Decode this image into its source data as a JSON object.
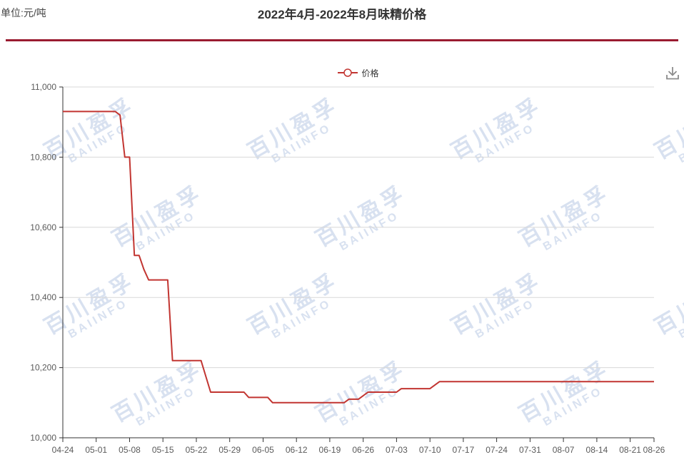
{
  "header": {
    "unit_label": "单位:元/吨",
    "title": "2022年4月-2022年8月味精价格"
  },
  "legend": {
    "label": "价格"
  },
  "toolbar": {
    "download": "download-icon"
  },
  "watermark": {
    "line1": "百川盈孚",
    "line2": "BAIINFO"
  },
  "colors": {
    "series": "#c23531",
    "divider": "#9a1b30",
    "axis": "#333333",
    "grid": "#d8d8d8",
    "tick_text": "#5a5a5a",
    "watermark": "#d8e1f0"
  },
  "chart_data": {
    "type": "line",
    "title": "2022年4月-2022年8月味精价格",
    "unit": "元/吨",
    "series_name": "价格",
    "legend_position": "top-center",
    "grid": "horizontal-only",
    "ylim": [
      10000,
      11000
    ],
    "y_ticks": [
      {
        "value": 10000,
        "label": "10,000"
      },
      {
        "value": 10200,
        "label": "10,200"
      },
      {
        "value": 10400,
        "label": "10,400"
      },
      {
        "value": 10600,
        "label": "10,600"
      },
      {
        "value": 10800,
        "label": "10,800"
      },
      {
        "value": 11000,
        "label": "11,000"
      }
    ],
    "x_ticks": [
      "04-24",
      "05-01",
      "05-08",
      "05-15",
      "05-22",
      "05-29",
      "06-05",
      "06-12",
      "06-19",
      "06-26",
      "07-03",
      "07-10",
      "07-17",
      "07-24",
      "07-31",
      "08-07",
      "08-14",
      "08-21",
      "08-26"
    ],
    "points": [
      [
        "04-24",
        10930
      ],
      [
        "05-05",
        10930
      ],
      [
        "05-06",
        10920
      ],
      [
        "05-07",
        10800
      ],
      [
        "05-08",
        10800
      ],
      [
        "05-09",
        10520
      ],
      [
        "05-10",
        10520
      ],
      [
        "05-11",
        10480
      ],
      [
        "05-12",
        10450
      ],
      [
        "05-16",
        10450
      ],
      [
        "05-17",
        10220
      ],
      [
        "05-23",
        10220
      ],
      [
        "05-25",
        10130
      ],
      [
        "06-01",
        10130
      ],
      [
        "06-02",
        10115
      ],
      [
        "06-06",
        10115
      ],
      [
        "06-07",
        10100
      ],
      [
        "06-22",
        10100
      ],
      [
        "06-23",
        10110
      ],
      [
        "06-25",
        10110
      ],
      [
        "06-27",
        10130
      ],
      [
        "07-03",
        10130
      ],
      [
        "07-04",
        10140
      ],
      [
        "07-10",
        10140
      ],
      [
        "07-12",
        10160
      ],
      [
        "08-26",
        10160
      ]
    ]
  }
}
